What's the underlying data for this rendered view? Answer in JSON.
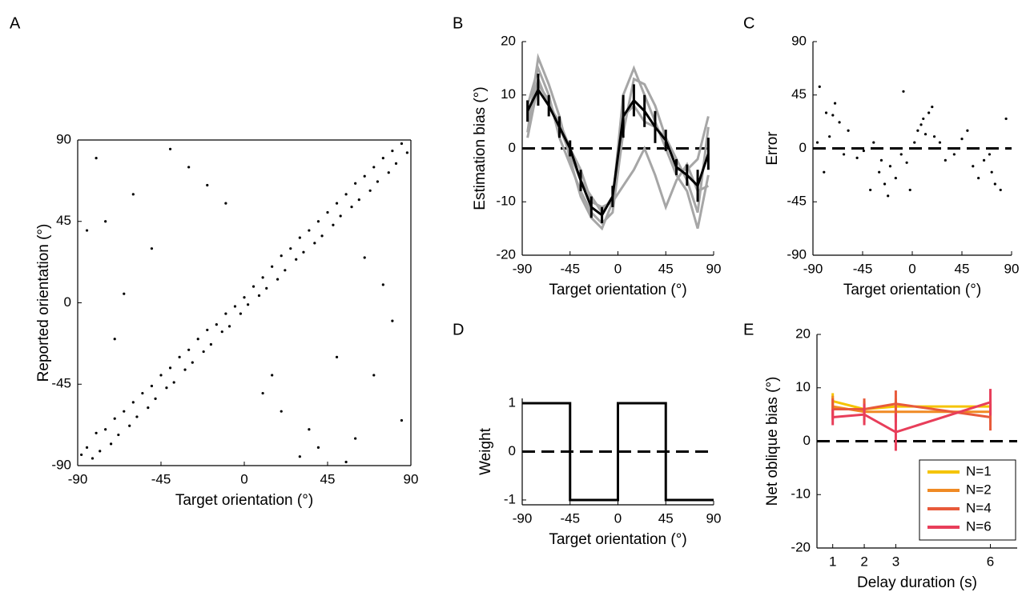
{
  "chart_data": [
    {
      "type": "scatter",
      "label": "A",
      "x_label": "Target orientation (°)",
      "y_label": "Reported orientation (°)",
      "xlim": [
        -90,
        90
      ],
      "ylim": [
        -90,
        90
      ],
      "xticks": [
        -90,
        -45,
        0,
        45,
        90
      ],
      "yticks": [
        -90,
        -45,
        0,
        45,
        90
      ],
      "color": "#000000",
      "box": true,
      "x": [
        -88,
        -85,
        -82,
        -80,
        -78,
        -75,
        -72,
        -70,
        -68,
        -65,
        -62,
        -60,
        -58,
        -55,
        -52,
        -50,
        -48,
        -45,
        -42,
        -40,
        -38,
        -35,
        -32,
        -30,
        -28,
        -25,
        -22,
        -20,
        -18,
        -15,
        -12,
        -10,
        -8,
        -5,
        -2,
        0,
        2,
        5,
        8,
        10,
        12,
        15,
        18,
        20,
        22,
        25,
        28,
        30,
        32,
        35,
        38,
        40,
        42,
        45,
        48,
        50,
        52,
        55,
        58,
        60,
        62,
        65,
        68,
        70,
        72,
        75,
        78,
        80,
        82,
        85,
        88,
        -80,
        -60,
        -30,
        -70,
        -50,
        20,
        40,
        70,
        60,
        80,
        -85,
        -40,
        10,
        30,
        -20,
        50,
        75,
        -65,
        35,
        65,
        -10,
        85,
        55,
        -75,
        15
      ],
      "values": [
        -84,
        -80,
        -86,
        -72,
        -82,
        -70,
        -78,
        -64,
        -73,
        -60,
        -68,
        -55,
        -63,
        -50,
        -58,
        -46,
        -53,
        -40,
        -47,
        -36,
        -44,
        -30,
        -37,
        -26,
        -33,
        -20,
        -27,
        -15,
        -23,
        -12,
        -16,
        -6,
        -13,
        -2,
        -6,
        3,
        -1,
        9,
        4,
        14,
        8,
        20,
        13,
        26,
        18,
        30,
        24,
        36,
        28,
        40,
        33,
        45,
        37,
        50,
        43,
        55,
        48,
        60,
        53,
        66,
        57,
        70,
        62,
        75,
        67,
        80,
        72,
        84,
        77,
        88,
        83,
        80,
        60,
        75,
        -20,
        30,
        -60,
        -80,
        -40,
        -75,
        -10,
        40,
        85,
        -50,
        -85,
        65,
        -30,
        10,
        5,
        -70,
        25,
        55,
        -65,
        -88,
        45,
        -40
      ]
    },
    {
      "type": "line",
      "label": "B",
      "x_label": "Target orientation (°)",
      "y_label": "Estimation bias (°)",
      "xlim": [
        -90,
        90
      ],
      "ylim": [
        -20,
        20
      ],
      "xticks": [
        -90,
        -45,
        0,
        45,
        90
      ],
      "yticks": [
        -20,
        -10,
        0,
        10,
        20
      ],
      "hline": 0,
      "x": [
        -85,
        -75,
        -65,
        -55,
        -45,
        -35,
        -25,
        -15,
        -5,
        5,
        15,
        25,
        35,
        45,
        55,
        65,
        75,
        85
      ],
      "series": [
        {
          "color": "#a6a6a6",
          "values": [
            3,
            17,
            12,
            6,
            -2,
            -9,
            -13,
            -15,
            -10,
            10,
            15,
            10,
            5,
            0,
            -5,
            -8,
            -15,
            -5
          ]
        },
        {
          "color": "#a6a6a6",
          "values": [
            8,
            15,
            10,
            2,
            -3,
            -8,
            -12,
            -14,
            -12,
            3,
            13,
            12,
            8,
            2,
            -2,
            -6,
            -12,
            4
          ]
        },
        {
          "color": "#a6a6a6",
          "values": [
            2,
            12,
            9,
            4,
            -1,
            -6,
            -9,
            -12,
            -9,
            6,
            8,
            5,
            4,
            2,
            -4,
            -4,
            -2,
            6
          ]
        },
        {
          "color": "#a6a6a6",
          "values": [
            5,
            13,
            8,
            5,
            0,
            -4,
            -10,
            -11,
            -10,
            -7,
            -4,
            0,
            -5,
            -11,
            -6,
            -3,
            -8,
            -7
          ]
        },
        {
          "color": "#000000",
          "values": [
            7,
            11,
            8,
            4,
            0,
            -6,
            -11,
            -12.5,
            -9,
            6,
            9,
            7,
            4,
            1.5,
            -3.5,
            -5,
            -7,
            -1
          ],
          "errors": [
            2,
            3,
            2,
            2,
            1.5,
            2,
            2,
            1.5,
            2,
            4,
            3,
            3,
            3,
            2,
            1.5,
            2,
            3,
            3
          ]
        }
      ]
    },
    {
      "type": "scatter",
      "label": "C",
      "x_label": "Target orientation (°)",
      "y_label": "Error",
      "xlim": [
        -90,
        90
      ],
      "ylim": [
        -90,
        90
      ],
      "xticks": [
        -90,
        -45,
        0,
        45,
        90
      ],
      "yticks": [
        -90,
        -45,
        0,
        45,
        90
      ],
      "hline": 0,
      "color": "#000000",
      "x": [
        -86,
        -84,
        -80,
        -78,
        -75,
        -72,
        -70,
        -66,
        -62,
        -58,
        -50,
        -44,
        -38,
        -35,
        -30,
        -28,
        -25,
        -22,
        -20,
        -15,
        -10,
        -8,
        -5,
        -2,
        2,
        5,
        8,
        10,
        12,
        15,
        18,
        20,
        25,
        30,
        38,
        45,
        50,
        55,
        60,
        65,
        70,
        72,
        75,
        80,
        85
      ],
      "values": [
        5,
        52,
        -20,
        30,
        10,
        28,
        38,
        22,
        -5,
        15,
        -8,
        -2,
        -35,
        5,
        -20,
        -10,
        -30,
        -40,
        -15,
        -25,
        -5,
        48,
        -12,
        -35,
        5,
        15,
        20,
        25,
        12,
        30,
        35,
        10,
        5,
        -10,
        -5,
        8,
        15,
        -15,
        -25,
        -10,
        -5,
        -20,
        -30,
        -35,
        25
      ]
    },
    {
      "type": "line",
      "label": "D",
      "x_label": "Target orientation (°)",
      "y_label": "Weight",
      "xlim": [
        -90,
        90
      ],
      "ylim": [
        -1.1,
        1.1
      ],
      "xticks": [
        -90,
        -45,
        0,
        45,
        90
      ],
      "yticks": [
        -1,
        0,
        1
      ],
      "hline": 0,
      "x": [
        -90,
        -45,
        -45,
        0,
        0,
        45,
        45,
        90
      ],
      "series": [
        {
          "color": "#000000",
          "values": [
            1,
            1,
            -1,
            -1,
            1,
            1,
            -1,
            -1
          ]
        }
      ]
    },
    {
      "type": "line",
      "label": "E",
      "x_label": "Delay duration (s)",
      "y_label": "Net oblique bias (°)",
      "xlim": [
        0.5,
        6.85
      ],
      "ylim": [
        -20,
        20
      ],
      "xticks": [
        1,
        2,
        3,
        6
      ],
      "yticks": [
        -20,
        -10,
        0,
        10,
        20
      ],
      "hline": 0,
      "legend": "lower right",
      "x": [
        1,
        2,
        3,
        6
      ],
      "series": [
        {
          "name": "N=1",
          "color": "#f5c400",
          "values": [
            7.5,
            6,
            6.5,
            6.5
          ],
          "errors": [
            1.5,
            1.5,
            1.5,
            1.5
          ]
        },
        {
          "name": "N=2",
          "color": "#f08a24",
          "values": [
            6.5,
            5.5,
            5.5,
            5.5
          ],
          "errors": [
            2,
            2,
            2,
            2
          ]
        },
        {
          "name": "N=4",
          "color": "#e85a3a",
          "values": [
            6,
            6,
            7,
            4.5
          ],
          "errors": [
            2,
            2,
            2.5,
            2.5
          ]
        },
        {
          "name": "N=6",
          "color": "#e83e5a",
          "values": [
            4.5,
            5,
            1.7,
            7.3
          ],
          "errors": [
            1.5,
            2,
            3.5,
            2.5
          ]
        }
      ]
    }
  ]
}
